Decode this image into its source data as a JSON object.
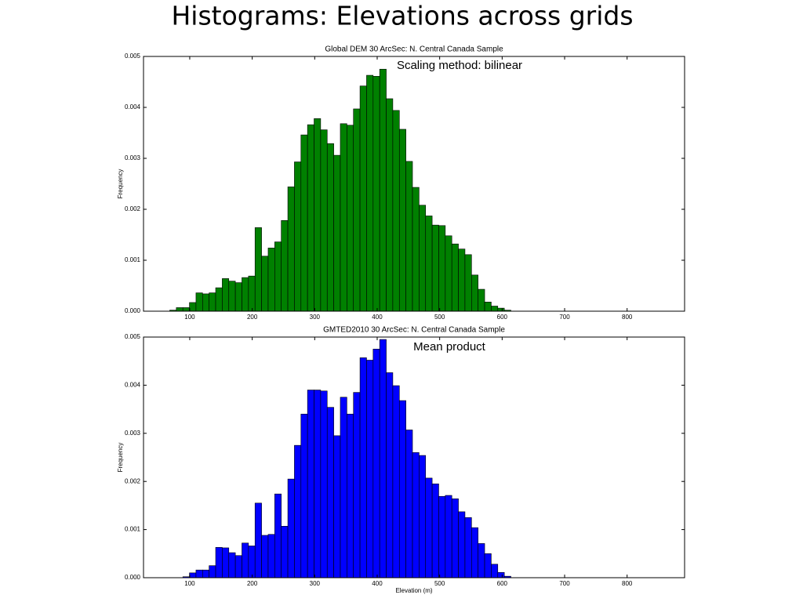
{
  "title": "Histograms: Elevations across grids",
  "chart_data": [
    {
      "type": "histogram",
      "title": "Global DEM 30 ArcSec: N. Central Canada Sample",
      "annotation": "Scaling method: bilinear",
      "ylabel": "Frequency",
      "color": "#008000",
      "bins": [
        68,
        78.5,
        89,
        99.5,
        110,
        120.5,
        131,
        141.5,
        152,
        162.5,
        173,
        183.5,
        194,
        204.5,
        215,
        225.5,
        236,
        246.5,
        257,
        267.5,
        278,
        288.5,
        299,
        309.5,
        320,
        330.5,
        341,
        351.5,
        362,
        372.5,
        383,
        393.5,
        404,
        414.5,
        425,
        435.5,
        446,
        456.5,
        467,
        477.5,
        488,
        498.5,
        509,
        519.5,
        530,
        540.5,
        551,
        561.5,
        572,
        582.5,
        593,
        603.5,
        614
      ],
      "values": [
        2e-05,
        7e-05,
        7e-05,
        0.00017,
        0.00036,
        0.00034,
        0.00036,
        0.00046,
        0.00064,
        0.00059,
        0.00056,
        0.00066,
        0.00069,
        0.00164,
        0.00108,
        0.00124,
        0.00136,
        0.00178,
        0.00244,
        0.00293,
        0.00346,
        0.00366,
        0.00378,
        0.00356,
        0.00329,
        0.00306,
        0.00368,
        0.00365,
        0.00397,
        0.00442,
        0.00463,
        0.00461,
        0.00475,
        0.00417,
        0.00394,
        0.00357,
        0.00294,
        0.00243,
        0.00208,
        0.00187,
        0.00169,
        0.00168,
        0.00148,
        0.00132,
        0.00122,
        0.00111,
        0.00071,
        0.00043,
        0.00018,
        0.0001,
        6e-05,
        2e-05
      ],
      "xlim": [
        26,
        892
      ],
      "ylim": [
        0,
        0.005
      ],
      "xticks": [
        100,
        200,
        300,
        400,
        500,
        600,
        700,
        800
      ],
      "yticks": [
        {
          "value": 0,
          "label": "0.000"
        },
        {
          "value": 0.001,
          "label": "0.001"
        },
        {
          "value": 0.002,
          "label": "0.002"
        },
        {
          "value": 0.003,
          "label": "0.003"
        },
        {
          "value": 0.004,
          "label": "0.004"
        },
        {
          "value": 0.005,
          "label": "0.005"
        }
      ]
    },
    {
      "type": "histogram",
      "title": "GMTED2010 30 ArcSec: N. Central Canada Sample",
      "annotation": "Mean product",
      "ylabel": "Frequency",
      "xlabel": "Elevation (m)",
      "color": "#0000ff",
      "bins": [
        89,
        99.5,
        110,
        120.5,
        131,
        141.5,
        152,
        162.5,
        173,
        183.5,
        194,
        204.5,
        215,
        225.5,
        236,
        246.5,
        257,
        267.5,
        278,
        288.5,
        299,
        309.5,
        320,
        330.5,
        341,
        351.5,
        362,
        372.5,
        383,
        393.5,
        404,
        414.5,
        425,
        435.5,
        446,
        456.5,
        467,
        477.5,
        488,
        498.5,
        509,
        519.5,
        530,
        540.5,
        551,
        561.5,
        572,
        582.5,
        593,
        603.5,
        614
      ],
      "values": [
        2e-05,
        0.0001,
        0.00016,
        0.00016,
        0.00025,
        0.00063,
        0.00062,
        0.00052,
        0.00046,
        0.00072,
        0.00066,
        0.00155,
        0.00088,
        0.0009,
        0.00174,
        0.00107,
        0.00205,
        0.00275,
        0.0034,
        0.0039,
        0.0039,
        0.00388,
        0.00354,
        0.00295,
        0.00375,
        0.0034,
        0.00385,
        0.00457,
        0.00452,
        0.00475,
        0.00495,
        0.00426,
        0.00399,
        0.00368,
        0.00307,
        0.0026,
        0.00254,
        0.00207,
        0.00195,
        0.00169,
        0.00171,
        0.00164,
        0.00137,
        0.00125,
        0.00104,
        0.00071,
        0.0005,
        0.00028,
        0.00011,
        3e-05
      ],
      "xlim": [
        26,
        892
      ],
      "ylim": [
        0,
        0.005
      ],
      "xticks": [
        100,
        200,
        300,
        400,
        500,
        600,
        700,
        800
      ],
      "yticks": [
        {
          "value": 0,
          "label": "0.000"
        },
        {
          "value": 0.001,
          "label": "0.001"
        },
        {
          "value": 0.002,
          "label": "0.002"
        },
        {
          "value": 0.003,
          "label": "0.003"
        },
        {
          "value": 0.004,
          "label": "0.004"
        },
        {
          "value": 0.005,
          "label": "0.005"
        }
      ]
    }
  ]
}
